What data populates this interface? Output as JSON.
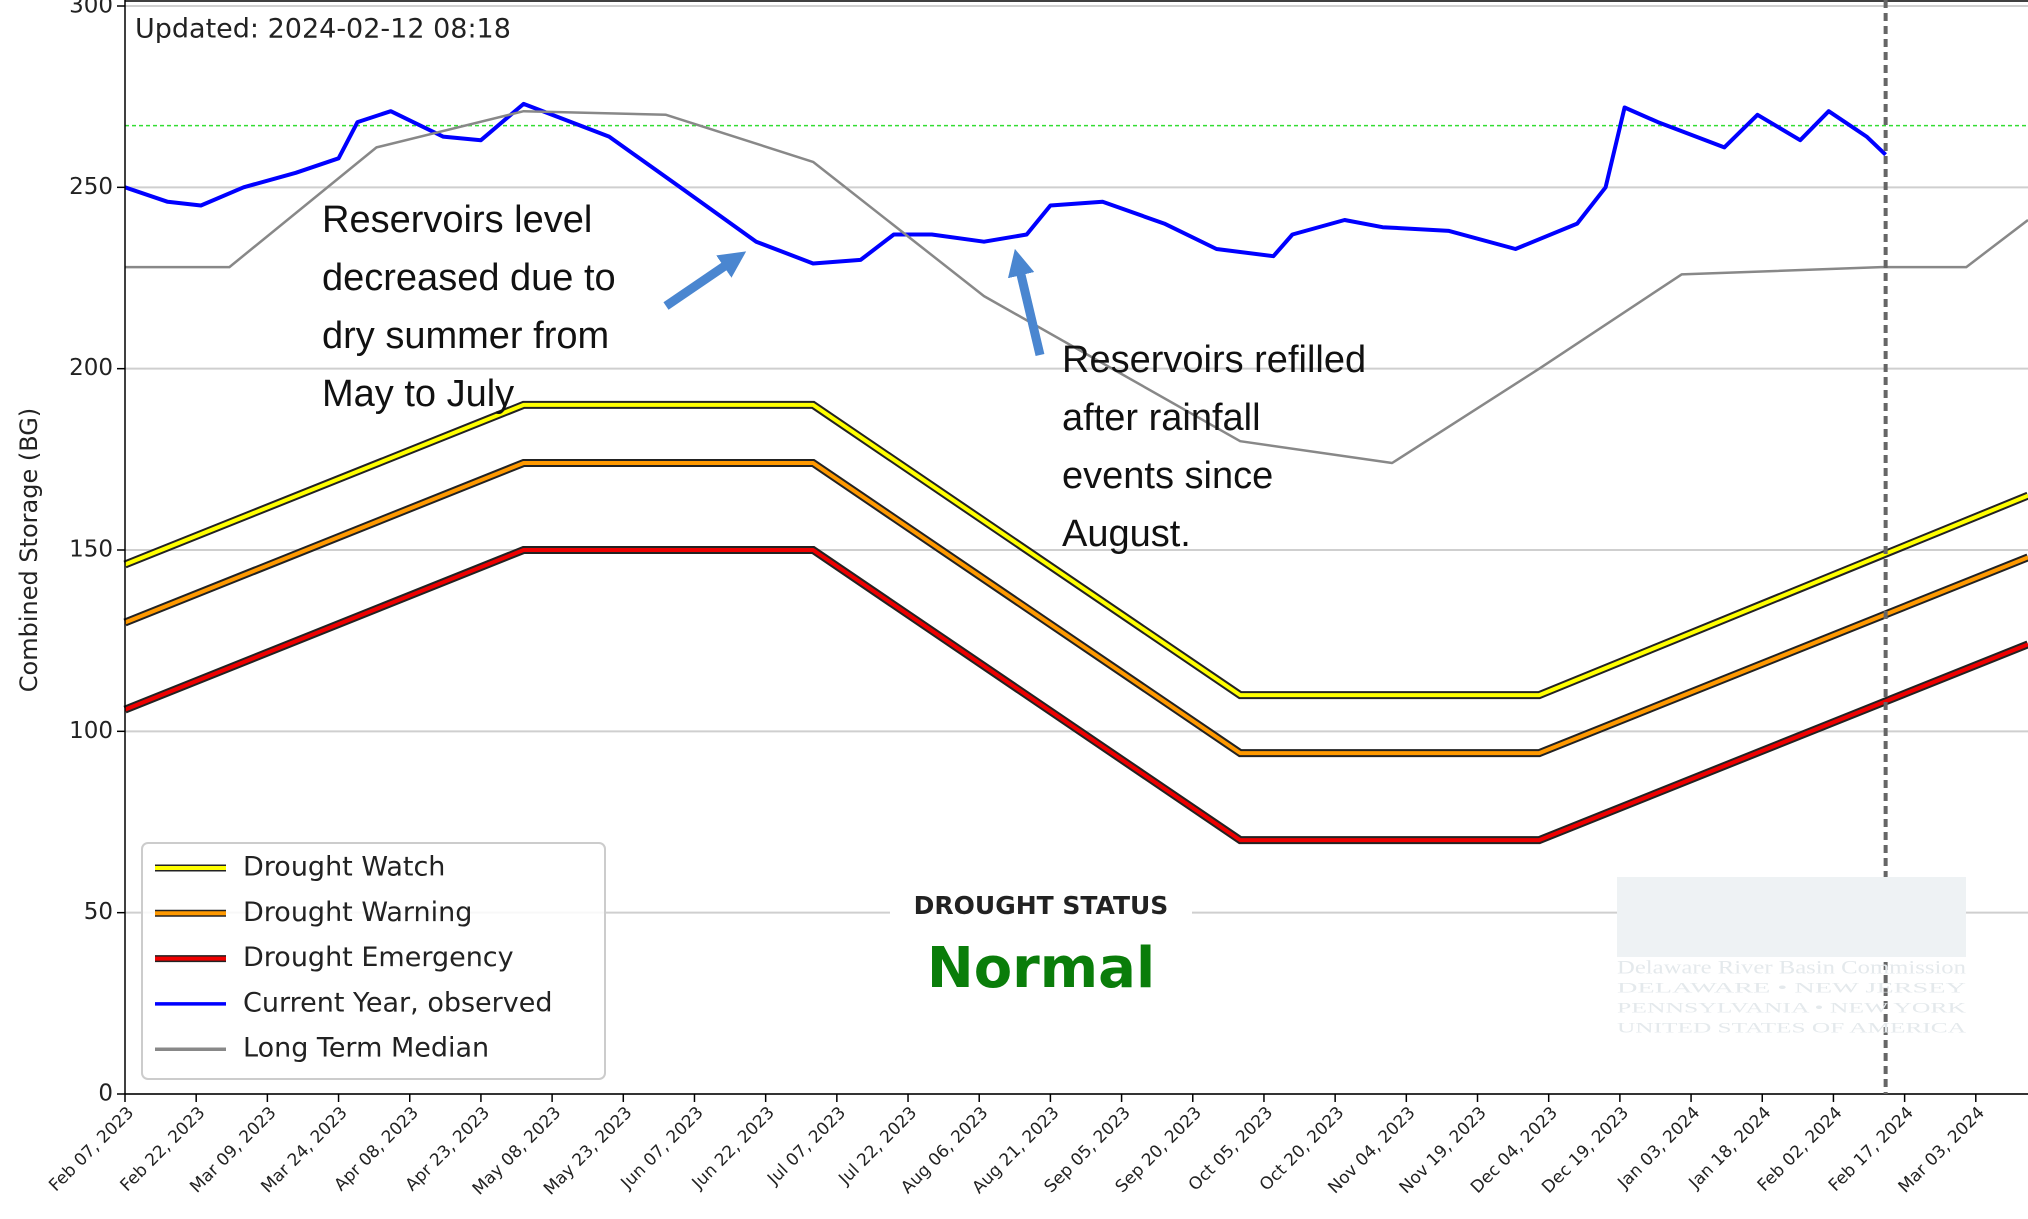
{
  "chart_data": {
    "type": "line",
    "updated": "Updated: 2024-02-12 08:18",
    "ylabel": "Combined Storage (BG)",
    "xlim": [
      "2023-02-07",
      "2024-03-14"
    ],
    "ylim": [
      0,
      300
    ],
    "yticks": [
      0,
      50,
      100,
      150,
      200,
      250,
      300
    ],
    "xticks": [
      {
        "value": "2023-02-07",
        "label": "Feb 07, 2023"
      },
      {
        "value": "2023-02-22",
        "label": "Feb 22, 2023"
      },
      {
        "value": "2023-03-09",
        "label": "Mar 09, 2023"
      },
      {
        "value": "2023-03-24",
        "label": "Mar 24, 2023"
      },
      {
        "value": "2023-04-08",
        "label": "Apr 08, 2023"
      },
      {
        "value": "2023-04-23",
        "label": "Apr 23, 2023"
      },
      {
        "value": "2023-05-08",
        "label": "May 08, 2023"
      },
      {
        "value": "2023-05-23",
        "label": "May 23, 2023"
      },
      {
        "value": "2023-06-07",
        "label": "Jun 07, 2023"
      },
      {
        "value": "2023-06-22",
        "label": "Jun 22, 2023"
      },
      {
        "value": "2023-07-07",
        "label": "Jul 07, 2023"
      },
      {
        "value": "2023-07-22",
        "label": "Jul 22, 2023"
      },
      {
        "value": "2023-08-06",
        "label": "Aug 06, 2023"
      },
      {
        "value": "2023-08-21",
        "label": "Aug 21, 2023"
      },
      {
        "value": "2023-09-05",
        "label": "Sep 05, 2023"
      },
      {
        "value": "2023-09-20",
        "label": "Sep 20, 2023"
      },
      {
        "value": "2023-10-05",
        "label": "Oct 05, 2023"
      },
      {
        "value": "2023-10-20",
        "label": "Oct 20, 2023"
      },
      {
        "value": "2023-11-04",
        "label": "Nov 04, 2023"
      },
      {
        "value": "2023-11-19",
        "label": "Nov 19, 2023"
      },
      {
        "value": "2023-12-04",
        "label": "Dec 04, 2023"
      },
      {
        "value": "2023-12-19",
        "label": "Dec 19, 2023"
      },
      {
        "value": "2024-01-03",
        "label": "Jan 03, 2024"
      },
      {
        "value": "2024-01-18",
        "label": "Jan 18, 2024"
      },
      {
        "value": "2024-02-02",
        "label": "Feb 02, 2024"
      },
      {
        "value": "2024-02-17",
        "label": "Feb 17, 2024"
      },
      {
        "value": "2024-03-03",
        "label": "Mar 03, 2024"
      }
    ],
    "grid": true,
    "target_level": 267,
    "current_date_marker": "2024-02-13",
    "series": [
      {
        "name": "Drought Watch",
        "color": "#ffff00",
        "outline": true,
        "x": [
          "2023-02-07",
          "2023-05-02",
          "2023-07-02",
          "2023-09-30",
          "2023-12-02",
          "2024-03-14"
        ],
        "values": [
          146,
          190,
          190,
          110,
          110,
          165
        ]
      },
      {
        "name": "Drought Warning",
        "color": "#ff9900",
        "outline": true,
        "x": [
          "2023-02-07",
          "2023-05-02",
          "2023-07-02",
          "2023-09-30",
          "2023-12-02",
          "2024-03-14"
        ],
        "values": [
          130,
          174,
          174,
          94,
          94,
          148
        ]
      },
      {
        "name": "Drought Emergency",
        "color": "#ee0000",
        "outline": true,
        "x": [
          "2023-02-07",
          "2023-05-02",
          "2023-07-02",
          "2023-09-30",
          "2023-12-02",
          "2024-03-14"
        ],
        "values": [
          106,
          150,
          150,
          70,
          70,
          124
        ]
      },
      {
        "name": "Current Year, observed",
        "color": "#0000ff",
        "outline": false,
        "x": [
          "2023-02-07",
          "2023-02-16",
          "2023-02-23",
          "2023-03-04",
          "2023-03-15",
          "2023-03-24",
          "2023-03-28",
          "2023-04-04",
          "2023-04-15",
          "2023-04-23",
          "2023-05-02",
          "2023-05-20",
          "2023-06-04",
          "2023-06-20",
          "2023-07-02",
          "2023-07-12",
          "2023-07-19",
          "2023-07-27",
          "2023-08-07",
          "2023-08-16",
          "2023-08-21",
          "2023-09-01",
          "2023-09-14",
          "2023-09-25",
          "2023-10-07",
          "2023-10-11",
          "2023-10-22",
          "2023-10-30",
          "2023-11-13",
          "2023-11-27",
          "2023-12-10",
          "2023-12-16",
          "2023-12-20",
          "2023-12-27",
          "2024-01-10",
          "2024-01-17",
          "2024-01-26",
          "2024-02-01",
          "2024-02-09",
          "2024-02-13"
        ],
        "values": [
          250,
          246,
          245,
          250,
          254,
          258,
          268,
          271,
          264,
          263,
          273,
          264,
          250,
          235,
          229,
          230,
          237,
          237,
          235,
          237,
          245,
          246,
          240,
          233,
          231,
          237,
          241,
          239,
          238,
          233,
          240,
          250,
          272,
          268,
          261,
          270,
          263,
          271,
          264,
          259
        ]
      },
      {
        "name": "Long Term Median",
        "color": "#888888",
        "outline": false,
        "x": [
          "2023-02-07",
          "2023-03-01",
          "2023-04-01",
          "2023-05-02",
          "2023-06-01",
          "2023-07-02",
          "2023-08-07",
          "2023-09-30",
          "2023-11-01",
          "2023-12-02",
          "2024-01-01",
          "2024-02-12",
          "2024-03-01",
          "2024-03-14"
        ],
        "values": [
          228,
          228,
          261,
          271,
          270,
          257,
          220,
          180,
          174,
          200,
          226,
          228,
          228,
          241
        ]
      }
    ],
    "status_label": "DROUGHT STATUS",
    "status": "Normal",
    "annotations": [
      {
        "lines": [
          "Reservoirs level",
          "decreased due to",
          "dry summer from",
          "May to July"
        ]
      },
      {
        "lines": [
          "Reservoirs refilled",
          "after rainfall",
          "events since",
          "August."
        ]
      }
    ],
    "logo": [
      "Delaware River Basin Commission",
      "DELAWARE  •  NEW JERSEY",
      "PENNSYLVANIA  •  NEW YORK",
      "UNITED STATES OF AMERICA"
    ]
  }
}
